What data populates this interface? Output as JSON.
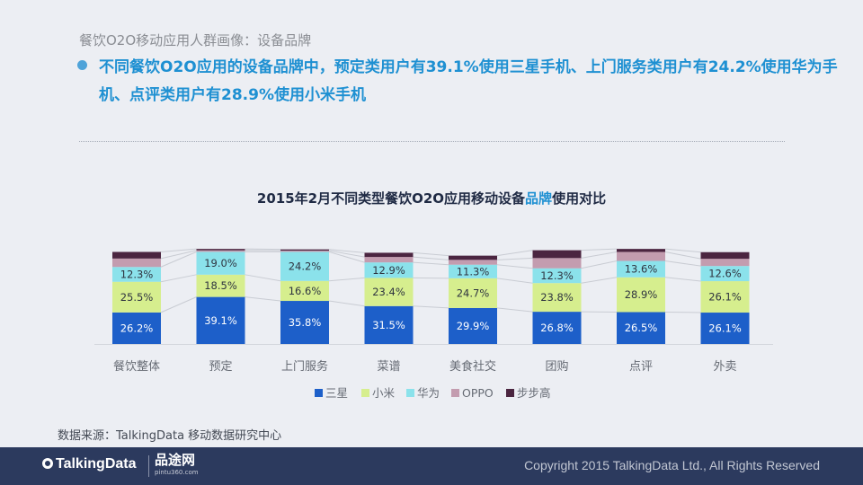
{
  "page_label": "餐饮O2O移动应用人群画像：设备品牌",
  "headline": "不同餐饮O2O应用的设备品牌中，预定类用户有39.1%使用三星手机、上门服务类用户有24.2%使用华为手机、点评类用户有28.9%使用小米手机",
  "chart_title_before": "2015年2月不同类型餐饮O2O应用移动设备",
  "chart_title_highlight": "品牌",
  "chart_title_after": "使用对比",
  "colors": {
    "三星": "#1d5fc9",
    "小米": "#d6ee8e",
    "华为": "#8be2eb",
    "OPPO": "#c39caf",
    "步步高": "#4b2540",
    "title_highlight": "#1e90d2"
  },
  "chart_data": {
    "type": "bar",
    "stacked": true,
    "title": "2015年2月不同类型餐饮O2O应用移动设备品牌使用对比",
    "categories": [
      "餐饮整体",
      "预定",
      "上门服务",
      "菜谱",
      "美食社交",
      "团购",
      "点评",
      "外卖"
    ],
    "series": [
      {
        "name": "三星",
        "values": [
          26.2,
          39.1,
          35.8,
          31.5,
          29.9,
          26.8,
          26.5,
          26.1
        ]
      },
      {
        "name": "小米",
        "values": [
          25.5,
          18.5,
          16.6,
          23.4,
          24.7,
          23.8,
          28.9,
          26.1
        ]
      },
      {
        "name": "华为",
        "values": [
          12.3,
          19.0,
          24.2,
          12.9,
          11.3,
          12.3,
          13.6,
          12.6
        ]
      },
      {
        "name": "OPPO",
        "values": [
          7.0,
          1.2,
          1.0,
          4.5,
          4.0,
          8.5,
          7.5,
          6.0
        ]
      },
      {
        "name": "步步高",
        "values": [
          5.5,
          1.2,
          1.0,
          3.5,
          3.5,
          6.5,
          2.5,
          5.5
        ]
      }
    ],
    "labeled_series": [
      "三星",
      "小米",
      "华为"
    ],
    "legend_position": "bottom",
    "grid": false
  },
  "source": "数据来源：TalkingData 移动数据研究中心",
  "footer": {
    "logo_text": "TalkingData",
    "partner_logo": "品途网",
    "partner_sub": "pintu360.com",
    "copyright": "Copyright 2015 TalkingData Ltd., All Rights Reserved"
  }
}
